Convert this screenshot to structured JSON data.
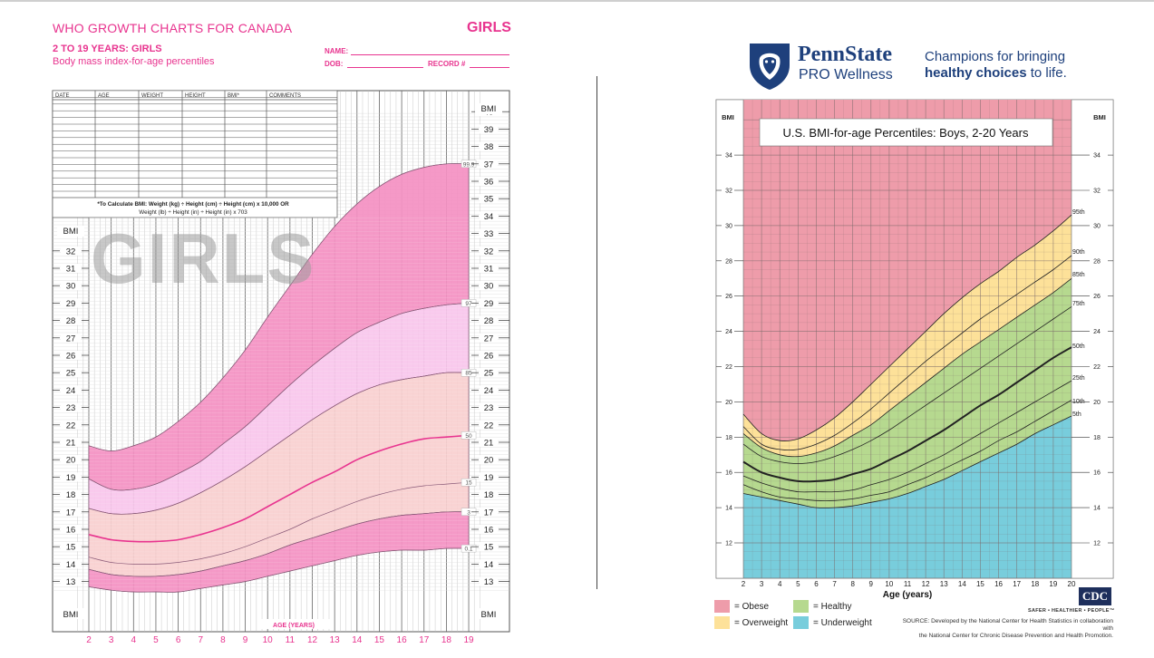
{
  "left": {
    "title": "WHO GROWTH CHARTS FOR CANADA",
    "sex_label": "GIRLS",
    "subtitle1": "2 TO 19 YEARS: GIRLS",
    "subtitle2": "Body mass index-for-age percentiles",
    "name_label": "NAME:",
    "dob_label": "DOB:",
    "record_label": "RECORD #",
    "table_headers": [
      "DATE",
      "AGE",
      "WEIGHT",
      "HEIGHT",
      "BMI*",
      "COMMENTS"
    ],
    "formula1": "*To Calculate BMI: Weight (kg) ÷ Height (cm) ÷ Height (cm) x 10,000  OR",
    "formula2": "Weight (lb) ÷ Height (in) ÷ Height (in) x 703",
    "watermark": "GIRLS",
    "bmi_label": "BMI",
    "xlabel": "AGE (YEARS)"
  },
  "right": {
    "brand": "PennState",
    "brand_sub": "PRO Wellness",
    "tagline1": "Champions for bringing",
    "tagline2_bold": "healthy choices",
    "tagline2_rest": " to life.",
    "title": "U.S. BMI-for-age Percentiles: Boys, 2-20 Years",
    "bmi_label": "BMI",
    "xlabel": "Age (years)",
    "legend": [
      {
        "label": "= Obese",
        "color": "#ee9caa"
      },
      {
        "label": "= Overweight",
        "color": "#fde199"
      },
      {
        "label": "= Healthy",
        "color": "#b6d98f"
      },
      {
        "label": "= Underweight",
        "color": "#78cddc"
      }
    ],
    "cdc_logo": "CDC",
    "cdc_slogan": "SAFER • HEALTHIER • PEOPLE™",
    "source1": "SOURCE: Developed by the National Center for Health Statistics in collaboration with",
    "source2": "the National Center for Chronic Disease Prevention and Health Promotion."
  },
  "chart_data": [
    {
      "type": "line",
      "title": "WHO GROWTH CHARTS FOR CANADA",
      "subtitle": "2 TO 19 YEARS: GIRLS — Body mass index-for-age percentiles",
      "xlabel": "AGE (YEARS)",
      "ylabel": "BMI",
      "xlim": [
        1.5,
        19.5
      ],
      "ylim": [
        12,
        41
      ],
      "x_ticks": [
        2,
        3,
        4,
        5,
        6,
        7,
        8,
        9,
        10,
        11,
        12,
        13,
        14,
        15,
        16,
        17,
        18,
        19
      ],
      "y_ticks": [
        13,
        14,
        15,
        16,
        17,
        18,
        19,
        20,
        21,
        22,
        23,
        24,
        25,
        26,
        27,
        28,
        29,
        30,
        31,
        32,
        33,
        34,
        35,
        36,
        37,
        38,
        39,
        40
      ],
      "x": [
        2,
        3,
        4,
        5,
        6,
        7,
        8,
        9,
        10,
        11,
        12,
        13,
        14,
        15,
        16,
        17,
        18,
        19
      ],
      "series": [
        {
          "name": "99.9",
          "values": [
            20.8,
            20.5,
            20.8,
            21.3,
            22.2,
            23.3,
            24.7,
            26.3,
            28.2,
            30.0,
            31.8,
            33.4,
            34.7,
            35.7,
            36.4,
            36.8,
            37.0,
            37.0
          ]
        },
        {
          "name": "97",
          "values": [
            18.9,
            18.3,
            18.3,
            18.6,
            19.2,
            19.9,
            20.9,
            21.9,
            23.1,
            24.3,
            25.4,
            26.4,
            27.3,
            27.9,
            28.4,
            28.7,
            28.9,
            29.0
          ]
        },
        {
          "name": "85",
          "values": [
            17.2,
            16.9,
            16.9,
            17.1,
            17.5,
            18.1,
            18.8,
            19.6,
            20.5,
            21.4,
            22.3,
            23.1,
            23.8,
            24.3,
            24.6,
            24.8,
            25.0,
            25.0
          ]
        },
        {
          "name": "50",
          "values": [
            15.7,
            15.4,
            15.3,
            15.3,
            15.4,
            15.7,
            16.1,
            16.6,
            17.3,
            18.0,
            18.7,
            19.3,
            20.0,
            20.5,
            20.9,
            21.2,
            21.3,
            21.4
          ]
        },
        {
          "name": "15",
          "values": [
            14.4,
            14.1,
            14.0,
            14.0,
            14.1,
            14.3,
            14.6,
            15.0,
            15.5,
            16.0,
            16.6,
            17.1,
            17.6,
            18.0,
            18.3,
            18.5,
            18.6,
            18.7
          ]
        },
        {
          "name": "3",
          "values": [
            13.7,
            13.4,
            13.3,
            13.3,
            13.4,
            13.6,
            13.9,
            14.2,
            14.6,
            15.1,
            15.5,
            15.9,
            16.3,
            16.6,
            16.8,
            16.9,
            17.0,
            17.0
          ]
        },
        {
          "name": "0.1",
          "values": [
            12.7,
            12.5,
            12.4,
            12.4,
            12.4,
            12.6,
            12.8,
            13.0,
            13.3,
            13.6,
            13.9,
            14.2,
            14.5,
            14.7,
            14.8,
            14.8,
            14.9,
            14.9
          ]
        }
      ],
      "band_colors": {
        "outer": "#f490c2",
        "middle": "#f9c6ec",
        "inner": "#f9cfcf"
      },
      "grid": true
    },
    {
      "type": "area",
      "title": "U.S. BMI-for-age Percentiles: Boys, 2-20 Years",
      "xlabel": "Age (years)",
      "ylabel": "BMI",
      "xlim": [
        2,
        20
      ],
      "ylim": [
        10,
        36
      ],
      "x_ticks": [
        2,
        3,
        4,
        5,
        6,
        7,
        8,
        9,
        10,
        11,
        12,
        13,
        14,
        15,
        16,
        17,
        18,
        19,
        20
      ],
      "y_ticks": [
        12,
        14,
        16,
        18,
        20,
        22,
        24,
        26,
        28,
        30,
        32,
        34
      ],
      "x": [
        2,
        3,
        4,
        5,
        6,
        7,
        8,
        9,
        10,
        11,
        12,
        13,
        14,
        15,
        16,
        17,
        18,
        19,
        20
      ],
      "series": [
        {
          "name": "95th",
          "values": [
            19.3,
            18.2,
            17.8,
            17.9,
            18.4,
            19.1,
            20.0,
            21.0,
            22.0,
            23.0,
            24.0,
            25.0,
            25.9,
            26.7,
            27.4,
            28.2,
            28.9,
            29.7,
            30.6
          ]
        },
        {
          "name": "90th",
          "values": [
            18.6,
            17.6,
            17.3,
            17.3,
            17.6,
            18.1,
            18.8,
            19.6,
            20.5,
            21.4,
            22.3,
            23.1,
            23.9,
            24.7,
            25.4,
            26.1,
            26.8,
            27.5,
            28.3
          ]
        },
        {
          "name": "85th",
          "values": [
            18.2,
            17.4,
            17.0,
            16.9,
            17.1,
            17.5,
            18.1,
            18.7,
            19.5,
            20.3,
            21.1,
            21.9,
            22.7,
            23.4,
            24.1,
            24.8,
            25.5,
            26.2,
            27.0
          ]
        },
        {
          "name": "75th",
          "values": [
            17.6,
            16.9,
            16.6,
            16.5,
            16.6,
            16.9,
            17.3,
            17.8,
            18.4,
            19.1,
            19.8,
            20.5,
            21.2,
            21.9,
            22.6,
            23.3,
            24.0,
            24.7,
            25.4
          ]
        },
        {
          "name": "50th",
          "values": [
            16.6,
            16.0,
            15.7,
            15.5,
            15.5,
            15.6,
            15.9,
            16.2,
            16.7,
            17.2,
            17.8,
            18.4,
            19.1,
            19.8,
            20.4,
            21.1,
            21.8,
            22.5,
            23.1
          ]
        },
        {
          "name": "25th",
          "values": [
            15.8,
            15.4,
            15.1,
            14.9,
            14.9,
            14.9,
            15.0,
            15.3,
            15.6,
            16.0,
            16.5,
            17.0,
            17.6,
            18.2,
            18.8,
            19.4,
            20.0,
            20.6,
            21.2
          ]
        },
        {
          "name": "10th",
          "values": [
            15.3,
            14.9,
            14.6,
            14.5,
            14.4,
            14.4,
            14.5,
            14.7,
            14.9,
            15.3,
            15.7,
            16.2,
            16.7,
            17.2,
            17.8,
            18.3,
            18.9,
            19.5,
            20.1
          ]
        },
        {
          "name": "5th",
          "values": [
            14.8,
            14.6,
            14.4,
            14.2,
            14.0,
            14.0,
            14.1,
            14.3,
            14.5,
            14.8,
            15.2,
            15.6,
            16.1,
            16.6,
            17.1,
            17.6,
            18.2,
            18.7,
            19.2
          ]
        }
      ],
      "band_colors": {
        "obese": "#ee9caa",
        "overweight": "#fde199",
        "healthy": "#b6d98f",
        "underweight": "#78cddc"
      },
      "legend_position": "bottom-left",
      "grid": true
    }
  ]
}
